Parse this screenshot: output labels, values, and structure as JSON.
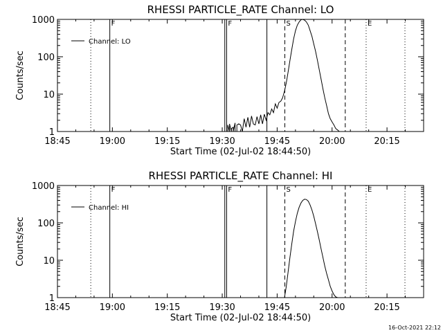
{
  "footer_timestamp": "16-Oct-2021 22:12",
  "chart_data": [
    {
      "type": "line",
      "title": "RHESSI PARTICLE_RATE Channel: LO",
      "xlabel": "Start Time (02-Jul-02 18:44:50)",
      "ylabel": "Counts/sec",
      "yscale": "log",
      "ylim": [
        1,
        1000
      ],
      "y_tick_values": [
        1,
        10,
        100,
        1000
      ],
      "y_tick_labels": [
        "1",
        "10",
        "100",
        "1000"
      ],
      "xlim_minutes": [
        0,
        100
      ],
      "x_tick_values": [
        0,
        15,
        30,
        45,
        60,
        75,
        90
      ],
      "x_tick_labels": [
        "18:45",
        "19:00",
        "19:15",
        "19:30",
        "19:45",
        "20:00",
        "20:15"
      ],
      "legend": {
        "label": "Channel: LO",
        "placement": "top-left"
      },
      "markers": [
        {
          "letter": "F",
          "minute": 14.3,
          "style": "solid",
          "labeled": true
        },
        {
          "letter": "",
          "minute": 45.7,
          "style": "solid",
          "labeled": false
        },
        {
          "letter": "F",
          "minute": 46.2,
          "style": "solid",
          "labeled": true
        },
        {
          "letter": "",
          "minute": 57.2,
          "style": "solid",
          "labeled": false
        },
        {
          "letter": "",
          "minute": 9.1,
          "style": "dotted",
          "labeled": false
        },
        {
          "letter": "S",
          "minute": 62.1,
          "style": "dashed",
          "labeled": true
        },
        {
          "letter": "",
          "minute": 78.6,
          "style": "dashed",
          "labeled": false
        },
        {
          "letter": "E",
          "minute": 84.3,
          "style": "dotted",
          "labeled": true
        },
        {
          "letter": "",
          "minute": 94.9,
          "style": "dotted",
          "labeled": false
        }
      ],
      "series": [
        {
          "x": [
            46.0,
            46.5,
            46.5,
            47.0,
            47.0,
            47.5,
            47.5,
            48.0,
            48.0,
            48.5,
            48.5,
            49.0,
            49.0,
            49.5,
            50.0,
            50.5,
            51.0,
            51.5,
            52.0,
            52.5,
            53.0,
            53.5,
            54.0,
            54.5,
            55.0,
            55.5,
            56.0,
            56.5,
            57.0,
            57.5,
            58.0,
            58.5,
            59.0,
            59.5,
            60.0,
            60.5,
            61.0,
            61.5,
            62.0,
            62.5,
            63.0,
            63.5,
            64.0,
            64.5,
            65.0,
            65.5,
            66.0,
            66.5,
            67.0,
            67.5,
            68.0,
            68.5,
            69.0,
            69.5,
            70.0,
            70.5,
            71.0,
            71.5,
            72.0,
            72.5,
            73.0,
            73.5,
            74.0,
            74.5,
            75.0,
            75.5,
            76.0,
            76.5,
            77.0
          ],
          "y": [
            1.0,
            1.0,
            1.5,
            1.0,
            1.6,
            1.0,
            1.2,
            1.3,
            1.0,
            1.7,
            1.0,
            1.0,
            1.5,
            1.6,
            1.5,
            1.0,
            2.2,
            1.3,
            2.4,
            1.3,
            2.6,
            1.6,
            1.5,
            2.5,
            1.6,
            2.8,
            1.6,
            2.9,
            2.0,
            3.2,
            2.8,
            4.0,
            3.2,
            5.5,
            4.2,
            6.0,
            6.5,
            8.0,
            12.0,
            20.0,
            40.0,
            80.0,
            160.0,
            300.0,
            500.0,
            700.0,
            850.0,
            980.0,
            1000.0,
            950.0,
            850.0,
            700.0,
            500.0,
            350.0,
            220.0,
            140.0,
            80.0,
            45.0,
            25.0,
            14.0,
            8.0,
            5.0,
            3.0,
            2.2,
            1.8,
            1.5,
            1.2,
            1.1,
            1.0
          ]
        }
      ]
    },
    {
      "type": "line",
      "title": "RHESSI PARTICLE_RATE Channel: HI",
      "xlabel": "Start Time (02-Jul-02 18:44:50)",
      "ylabel": "Counts/sec",
      "yscale": "log",
      "ylim": [
        1,
        1000
      ],
      "y_tick_values": [
        1,
        10,
        100,
        1000
      ],
      "y_tick_labels": [
        "1",
        "10",
        "100",
        "1000"
      ],
      "xlim_minutes": [
        0,
        100
      ],
      "x_tick_values": [
        0,
        15,
        30,
        45,
        60,
        75,
        90
      ],
      "x_tick_labels": [
        "18:45",
        "19:00",
        "19:15",
        "19:30",
        "19:45",
        "20:00",
        "20:15"
      ],
      "legend": {
        "label": "Channel: HI",
        "placement": "top-left"
      },
      "markers": [
        {
          "letter": "F",
          "minute": 14.3,
          "style": "solid",
          "labeled": true
        },
        {
          "letter": "",
          "minute": 45.7,
          "style": "solid",
          "labeled": false
        },
        {
          "letter": "F",
          "minute": 46.2,
          "style": "solid",
          "labeled": true
        },
        {
          "letter": "",
          "minute": 57.2,
          "style": "solid",
          "labeled": false
        },
        {
          "letter": "",
          "minute": 9.1,
          "style": "dotted",
          "labeled": false
        },
        {
          "letter": "S",
          "minute": 62.1,
          "style": "dashed",
          "labeled": true
        },
        {
          "letter": "",
          "minute": 78.6,
          "style": "dashed",
          "labeled": false
        },
        {
          "letter": "E",
          "minute": 84.3,
          "style": "dotted",
          "labeled": true
        },
        {
          "letter": "",
          "minute": 94.9,
          "style": "dotted",
          "labeled": false
        }
      ],
      "series": [
        {
          "x": [
            62.0,
            62.5,
            63.0,
            63.5,
            64.0,
            64.5,
            65.0,
            65.5,
            66.0,
            66.5,
            67.0,
            67.5,
            68.0,
            68.5,
            69.0,
            69.5,
            70.0,
            70.5,
            71.0,
            71.5,
            72.0,
            72.5,
            73.0,
            73.5,
            74.0,
            74.5,
            75.0,
            75.5,
            76.0,
            76.5
          ],
          "y": [
            1.0,
            2.0,
            5.0,
            12.0,
            28.0,
            60.0,
            110.0,
            180.0,
            260.0,
            340.0,
            400.0,
            430.0,
            420.0,
            380.0,
            300.0,
            220.0,
            150.0,
            95.0,
            58.0,
            35.0,
            20.0,
            12.0,
            7.0,
            4.5,
            3.0,
            2.0,
            1.5,
            1.2,
            1.05,
            1.0
          ]
        }
      ]
    }
  ]
}
